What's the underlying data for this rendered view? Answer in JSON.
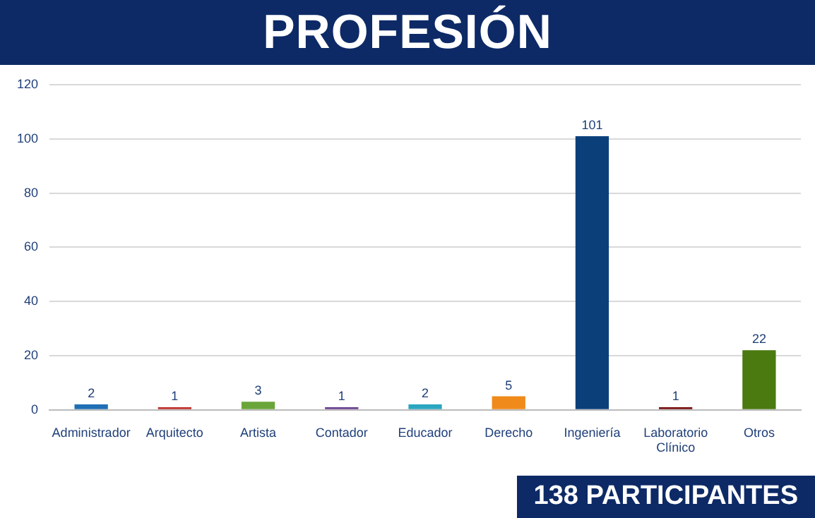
{
  "chart_data": {
    "type": "bar",
    "title": "PROFESIÓN",
    "categories": [
      "Administrador",
      "Arquitecto",
      "Artista",
      "Contador",
      "Educador",
      "Derecho",
      "Ingeniería",
      "Laboratorio Clínico",
      "Otros"
    ],
    "values": [
      2,
      1,
      3,
      1,
      2,
      5,
      101,
      1,
      22
    ],
    "colors": [
      "#1f6fb5",
      "#c0302a",
      "#6aa53a",
      "#6a3f90",
      "#2aa6c0",
      "#f08a1a",
      "#0b3f7a",
      "#7a1010",
      "#4a7a10"
    ],
    "ylim": [
      0,
      120
    ],
    "yticks": [
      0,
      20,
      40,
      60,
      80,
      100,
      120
    ],
    "grid": "y",
    "data_labels": true,
    "annotations": [
      "138 PARTICIPANTES"
    ]
  }
}
